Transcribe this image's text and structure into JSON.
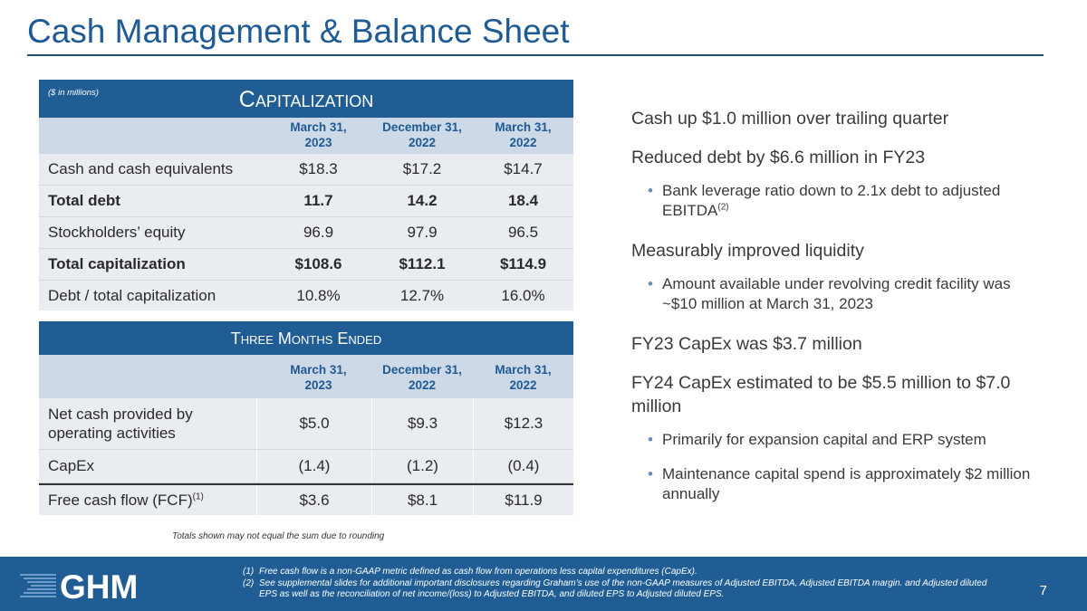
{
  "title": "Cash Management & Balance Sheet",
  "capitalization": {
    "units": "($ in millions)",
    "title": "Capitalization",
    "columns": [
      "March 31,\n2023",
      "December 31,\n2022",
      "March 31,\n2022"
    ],
    "rows": [
      {
        "label": "Cash and cash equivalents",
        "values": [
          "$18.3",
          "$17.2",
          "$14.7"
        ]
      },
      {
        "label": "Total debt",
        "values": [
          "11.7",
          "14.2",
          "18.4"
        ]
      },
      {
        "label": "Stockholders’ equity",
        "values": [
          "96.9",
          "97.9",
          "96.5"
        ]
      },
      {
        "label": "Total capitalization",
        "values": [
          "$108.6",
          "$112.1",
          "$114.9"
        ]
      },
      {
        "label": "Debt / total capitalization",
        "values": [
          "10.8%",
          "12.7%",
          "16.0%"
        ]
      }
    ]
  },
  "cashflow": {
    "title": "Three Months Ended",
    "columns": [
      "March 31,\n2023",
      "December 31,\n2022",
      "March 31,\n2022"
    ],
    "rows": [
      {
        "label": "Net cash provided by operating activities",
        "values": [
          "$5.0",
          "$9.3",
          "$12.3"
        ]
      },
      {
        "label": "CapEx",
        "values": [
          "(1.4)",
          "(1.2)",
          "(0.4)"
        ]
      },
      {
        "label": "Free cash flow (FCF)",
        "sup": "(1)",
        "values": [
          "$3.6",
          "$8.1",
          "$11.9"
        ]
      }
    ]
  },
  "rounding_note": "Totals shown may not equal the sum due to rounding",
  "bullets": {
    "b1": "Cash up $1.0 million over trailing quarter",
    "b2": "Reduced debt by $6.6 million in FY23",
    "b2_sub": "Bank leverage ratio down to 2.1x debt to adjusted EBITDA",
    "b2_sub_sup": "(2)",
    "b3": "Measurably improved liquidity",
    "b3_sub": "Amount available under revolving credit facility was ~$10 million at March 31, 2023",
    "b4": "FY23 CapEx was $3.7 million",
    "b5": "FY24 CapEx estimated to be $5.5 million to $7.0 million",
    "b5_sub1": "Primarily for expansion capital and ERP system",
    "b5_sub2": "Maintenance capital spend is approximately $2 million annually",
    "bullet_char": "•"
  },
  "footer": {
    "logo_text": "GHM",
    "fn1_num": "(1)",
    "fn1": "Free cash flow is a non-GAAP metric defined as cash flow from operations less capital expenditures (CapEx).",
    "fn2_num": "(2)",
    "fn2": "See supplemental slides for additional important disclosures regarding Graham’s use of the non-GAAP measures of Adjusted EBITDA, Adjusted EBITDA margin. and Adjusted diluted EPS as well as the reconciliation of net income/(loss) to Adjusted EBITDA, and diluted EPS to Adjusted diluted EPS.",
    "page_number": "7"
  },
  "colors": {
    "accent": "#1e5a94",
    "table_fill": "#e9ecf1",
    "header_fill": "#cdd9e7",
    "footer": "#1f5d94"
  }
}
